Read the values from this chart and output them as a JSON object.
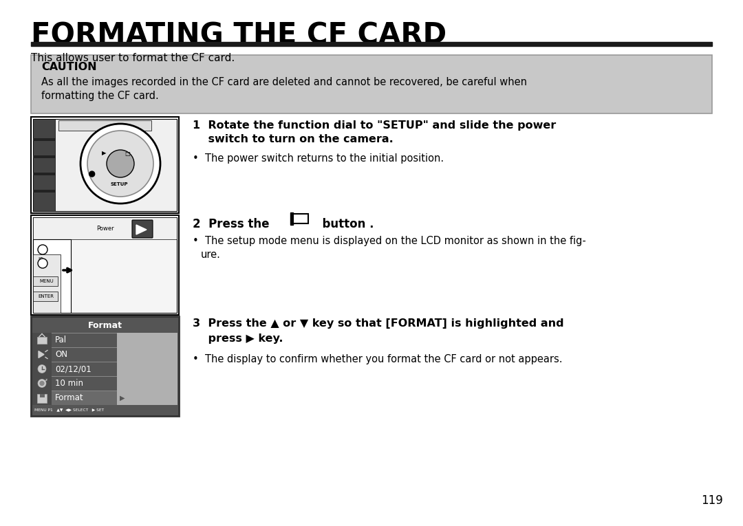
{
  "title": "FORMATING THE CF CARD",
  "subtitle": "This allows user to format the CF card.",
  "caution_title": "CAUTION",
  "caution_line1": "As all the images recorded in the CF card are deleted and cannot be recovered, be careful when",
  "caution_line2": "formatting the CF card.",
  "step1_bold1": "1  Rotate the function dial to \"SETUP\" and slide the power",
  "step1_bold2": "    switch to turn on the camera.",
  "step1_bullet": "•  The power switch returns to the initial position.",
  "step2_bold": "2  Press the",
  "step2_button": "|▯|",
  "step2_button_text": "button .",
  "step2_bullet1": "•  The setup mode menu is displayed on the LCD monitor as shown in the fig-",
  "step2_bullet2": "    ure.",
  "step3_bold1": "3  Press the ▲ or ▼ key so that [FORMAT] is highlighted and",
  "step3_bold2": "    press ▶ key.",
  "step3_bullet": "•  The display to confirm whether you format the CF card or not appears.",
  "menu_items": [
    "Format",
    "10 min",
    "02/12/01",
    "ON",
    "Pal"
  ],
  "page_number": "119",
  "bg_color": "#ffffff",
  "caution_bg": "#c8c8c8",
  "caution_border": "#999999",
  "title_color": "#000000",
  "text_color": "#000000",
  "dark_bar": "#4a4a4a",
  "menu_bg": "#b0b0b0",
  "menu_row_dark": "#6a6a6a",
  "menu_highlight": "#888888",
  "menu_text": "#ffffff",
  "menu_icon_bg": "#6a6a6a"
}
